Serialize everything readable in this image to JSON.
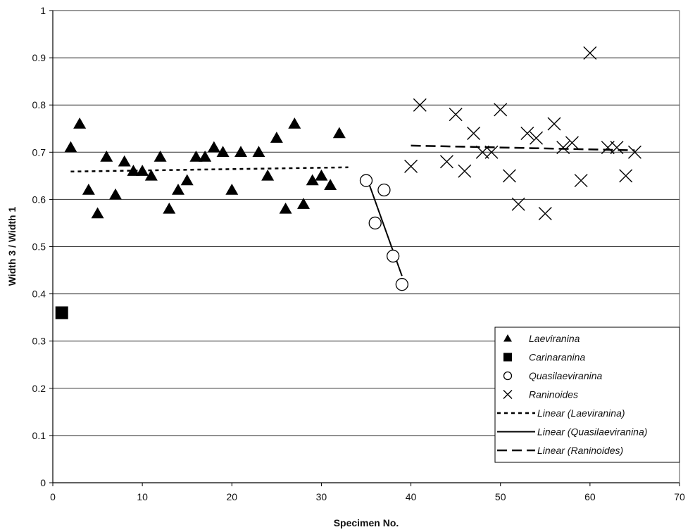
{
  "chart_data": {
    "type": "scatter",
    "xlabel": "Specimen No.",
    "ylabel": "Width 3 / Width 1",
    "xlim": [
      0,
      70
    ],
    "ylim": [
      0,
      1
    ],
    "x_ticks": [
      "0",
      "10",
      "20",
      "30",
      "40",
      "50",
      "60",
      "70"
    ],
    "y_ticks": [
      "0",
      "0.1",
      "0.2",
      "0.3",
      "0.4",
      "0.5",
      "0.6",
      "0.7",
      "0.8",
      "0.9",
      "1"
    ],
    "grid": "horizontal",
    "legend_position": "bottom-right",
    "series": [
      {
        "name": "Laeviranina",
        "marker": "triangle",
        "color": "#000000",
        "points": [
          [
            2,
            0.71
          ],
          [
            3,
            0.76
          ],
          [
            4,
            0.62
          ],
          [
            5,
            0.57
          ],
          [
            6,
            0.69
          ],
          [
            7,
            0.61
          ],
          [
            8,
            0.68
          ],
          [
            9,
            0.66
          ],
          [
            10,
            0.66
          ],
          [
            11,
            0.65
          ],
          [
            12,
            0.69
          ],
          [
            13,
            0.58
          ],
          [
            14,
            0.62
          ],
          [
            15,
            0.64
          ],
          [
            16,
            0.69
          ],
          [
            17,
            0.69
          ],
          [
            18,
            0.71
          ],
          [
            19,
            0.7
          ],
          [
            20,
            0.62
          ],
          [
            21,
            0.7
          ],
          [
            23,
            0.7
          ],
          [
            24,
            0.65
          ],
          [
            25,
            0.73
          ],
          [
            26,
            0.58
          ],
          [
            27,
            0.76
          ],
          [
            28,
            0.59
          ],
          [
            29,
            0.64
          ],
          [
            30,
            0.65
          ],
          [
            31,
            0.63
          ],
          [
            32,
            0.74
          ]
        ]
      },
      {
        "name": "Carinaranina",
        "marker": "square",
        "color": "#000000",
        "points": [
          [
            1,
            0.36
          ]
        ]
      },
      {
        "name": "Quasilaeviranina",
        "marker": "circle",
        "color": "#000000",
        "points": [
          [
            35,
            0.64
          ],
          [
            36,
            0.55
          ],
          [
            37,
            0.62
          ],
          [
            38,
            0.48
          ],
          [
            39,
            0.42
          ]
        ]
      },
      {
        "name": "Raninoides",
        "marker": "x",
        "color": "#000000",
        "points": [
          [
            40,
            0.67
          ],
          [
            41,
            0.8
          ],
          [
            44,
            0.68
          ],
          [
            45,
            0.78
          ],
          [
            46,
            0.66
          ],
          [
            47,
            0.74
          ],
          [
            48,
            0.7
          ],
          [
            49,
            0.7
          ],
          [
            50,
            0.79
          ],
          [
            51,
            0.65
          ],
          [
            52,
            0.59
          ],
          [
            53,
            0.74
          ],
          [
            54,
            0.73
          ],
          [
            55,
            0.57
          ],
          [
            56,
            0.76
          ],
          [
            57,
            0.71
          ],
          [
            58,
            0.72
          ],
          [
            59,
            0.64
          ],
          [
            60,
            0.91
          ],
          [
            62,
            0.71
          ],
          [
            63,
            0.71
          ],
          [
            64,
            0.65
          ],
          [
            65,
            0.7
          ]
        ]
      }
    ],
    "trendlines": [
      {
        "name": "Linear (Laeviranina)",
        "style": "dotted",
        "x": [
          2,
          33
        ],
        "y": [
          0.659,
          0.668
        ]
      },
      {
        "name": "Linear (Quasilaeviranina)",
        "style": "solid",
        "x": [
          35,
          39
        ],
        "y": [
          0.65,
          0.438
        ]
      },
      {
        "name": "Linear (Raninoides)",
        "style": "dash",
        "x": [
          40,
          65
        ],
        "y": [
          0.714,
          0.704
        ]
      }
    ],
    "legend": [
      {
        "label": "Laeviranina",
        "symbol": "triangle"
      },
      {
        "label": "Carinaranina",
        "symbol": "square"
      },
      {
        "label": "Quasilaeviranina",
        "symbol": "circle"
      },
      {
        "label": "Raninoides",
        "symbol": "x"
      },
      {
        "label": "Linear (Laeviranina)",
        "symbol": "dotted"
      },
      {
        "label": "Linear (Quasilaeviranina)",
        "symbol": "solid"
      },
      {
        "label": "Linear (Raninoides)",
        "symbol": "dash"
      }
    ]
  }
}
